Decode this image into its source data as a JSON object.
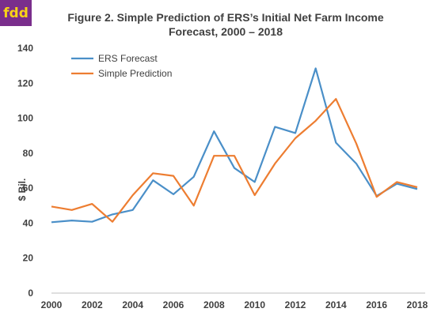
{
  "logo": {
    "text": "fdd",
    "bg": "#7a2e8c",
    "fg": "#f7d417"
  },
  "chart_data": {
    "type": "line",
    "title": "Figure  2. Simple Prediction  of ERS’s Initial  Net Farm Income",
    "subtitle": "Forecast,  2000 – 2018",
    "xlabel": "",
    "ylabel": "$ Bil.",
    "x": [
      2000,
      2001,
      2002,
      2003,
      2004,
      2005,
      2006,
      2007,
      2008,
      2009,
      2010,
      2011,
      2012,
      2013,
      2014,
      2015,
      2016,
      2017,
      2018
    ],
    "xticks": [
      "2000",
      "2002",
      "2004",
      "2006",
      "2008",
      "2010",
      "2012",
      "2014",
      "2016",
      "2018"
    ],
    "yticks": [
      "0",
      "20",
      "40",
      "60",
      "80",
      "100",
      "120",
      "140"
    ],
    "ylim": [
      0,
      140
    ],
    "grid": false,
    "legend_position": "top-left",
    "series": [
      {
        "name": "ERS Forecast",
        "color": "#4a8fc8",
        "values": [
          40.5,
          41.5,
          40.8,
          45.0,
          47.5,
          64.5,
          56.5,
          66.5,
          92.5,
          71.5,
          63.5,
          95.0,
          91.5,
          128.5,
          86.0,
          74.0,
          55.5,
          62.5,
          59.5
        ]
      },
      {
        "name": "Simple Prediction",
        "color": "#ed7d31",
        "values": [
          49.5,
          47.5,
          51.0,
          40.8,
          56.0,
          68.5,
          67.0,
          50.0,
          78.5,
          78.5,
          56.0,
          74.0,
          88.5,
          98.5,
          111.0,
          85.5,
          55.0,
          63.5,
          60.5
        ]
      }
    ]
  }
}
